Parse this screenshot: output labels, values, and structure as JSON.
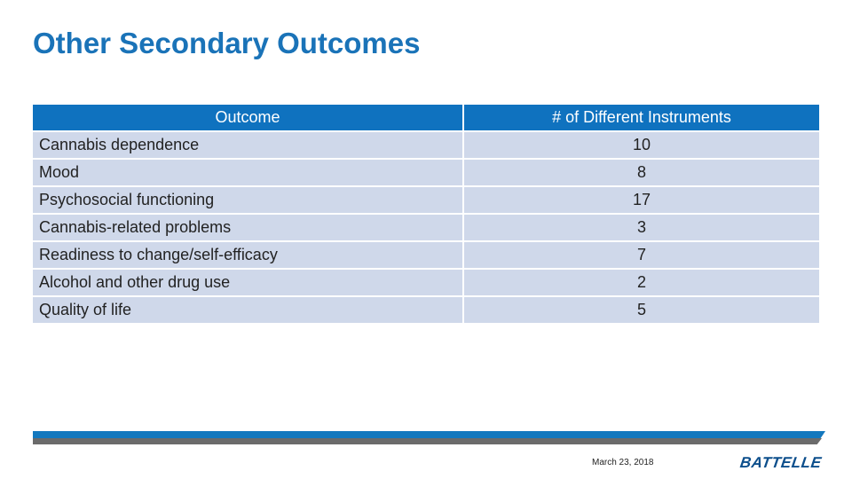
{
  "slide": {
    "title": "Other Secondary Outcomes"
  },
  "table": {
    "headers": [
      "Outcome",
      "# of Different Instruments"
    ],
    "rows": [
      {
        "outcome": "Cannabis dependence",
        "count": "10"
      },
      {
        "outcome": "Mood",
        "count": "8"
      },
      {
        "outcome": "Psychosocial functioning",
        "count": "17"
      },
      {
        "outcome": "Cannabis-related problems",
        "count": "3"
      },
      {
        "outcome": "Readiness to change/self-efficacy",
        "count": "7"
      },
      {
        "outcome": "Alcohol and other drug use",
        "count": "2"
      },
      {
        "outcome": "Quality of life",
        "count": "5"
      }
    ]
  },
  "footer": {
    "date": "March 23, 2018",
    "logo_text": "BATTELLE"
  },
  "colors": {
    "title": "#1a73b8",
    "header_bg": "#0f72bf",
    "row_bg": "#cfd8ea",
    "footer_blue": "#1378be",
    "footer_gray": "#6b6b6b"
  }
}
